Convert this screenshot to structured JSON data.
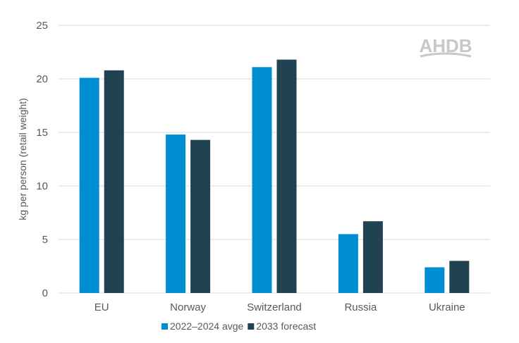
{
  "chart_data": {
    "type": "bar",
    "title": "",
    "xlabel": "",
    "ylabel": "kg per person (retail weight)",
    "ylim": [
      0,
      25
    ],
    "yticks": [
      0,
      5,
      10,
      15,
      20,
      25
    ],
    "grid": true,
    "legend_position": "bottom",
    "categories": [
      "EU",
      "Norway",
      "Switzerland",
      "Russia",
      "Ukraine"
    ],
    "series": [
      {
        "name": "2022–2024 avge",
        "color": "#008ED2",
        "values": [
          20.1,
          14.8,
          21.1,
          5.5,
          2.4
        ]
      },
      {
        "name": "2033 forecast",
        "color": "#214251",
        "values": [
          20.8,
          14.3,
          21.8,
          6.7,
          3.0
        ]
      }
    ]
  },
  "logo": "AHDB"
}
